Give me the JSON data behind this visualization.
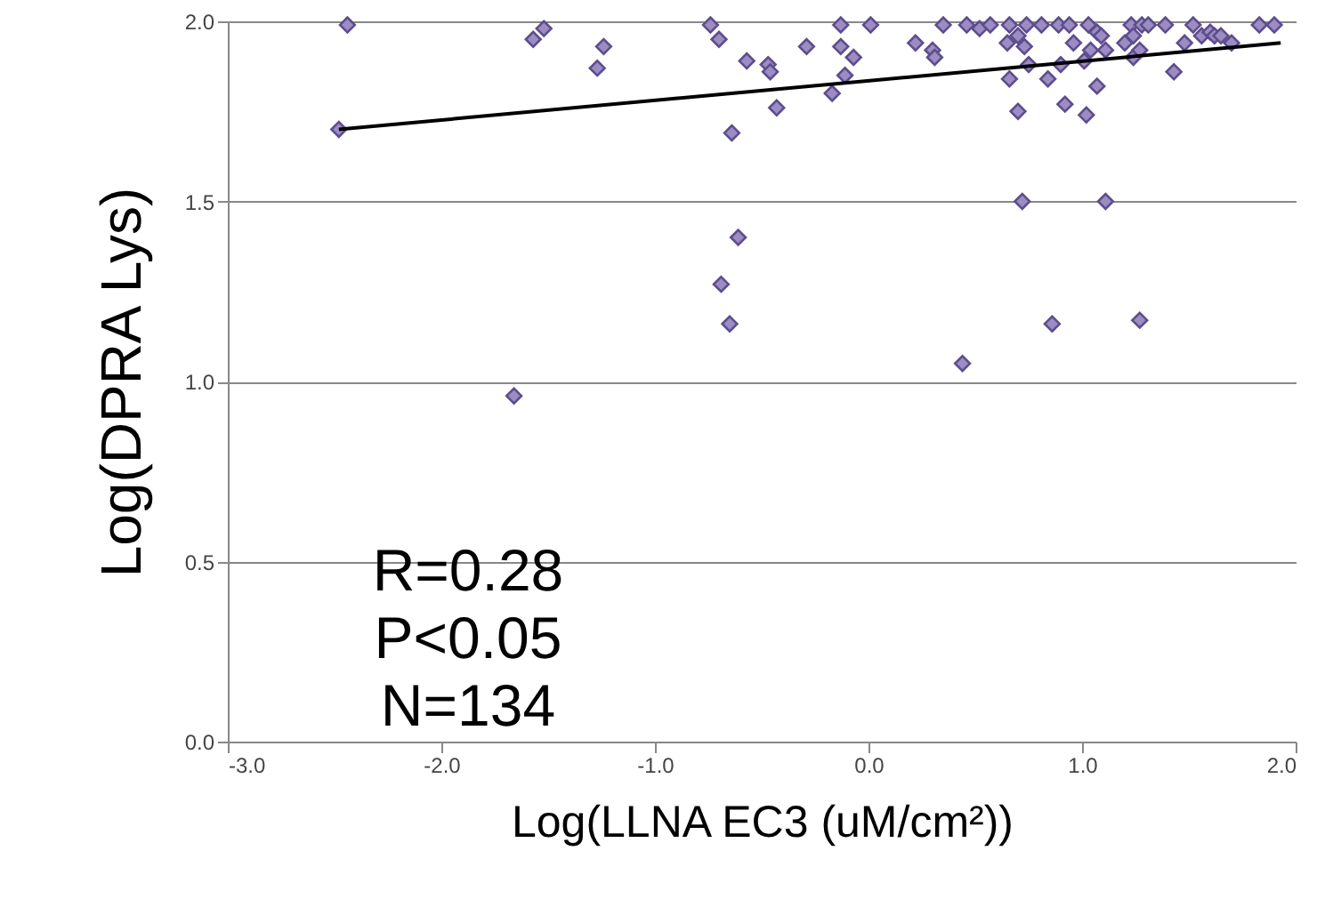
{
  "chart_data": {
    "type": "scatter",
    "xlabel": "Log(LLNA EC3   (uM/cm²))",
    "ylabel": "Log(DPRA Lys)",
    "annotations": [
      "R=0.28",
      "P<0.05",
      "N=134"
    ],
    "xlim": [
      -3,
      2
    ],
    "xticks": [
      {
        "value": -3,
        "label": "-3.0"
      },
      {
        "value": -2,
        "label": "-2.0"
      },
      {
        "value": -1,
        "label": "-1.0"
      },
      {
        "value": 0,
        "label": "0.0"
      },
      {
        "value": 1,
        "label": "1.0"
      },
      {
        "value": 2,
        "label": "2.0"
      }
    ],
    "ylim": [
      0,
      2
    ],
    "yticks": [
      {
        "value": 0,
        "label": "0.0"
      },
      {
        "value": 0.5,
        "label": "0.5"
      },
      {
        "value": 1,
        "label": "1.0"
      },
      {
        "value": 1.5,
        "label": "1.5"
      },
      {
        "value": 2,
        "label": "2.0"
      }
    ],
    "grid": "y",
    "series": [
      {
        "marker": "diamond",
        "color": "#9b8cc4",
        "x": [
          -2.44,
          -2.48,
          -1.57,
          -1.52,
          -1.27,
          -1.24,
          -1.66,
          -0.74,
          -0.7,
          -0.57,
          -0.64,
          -0.61,
          -0.69,
          -0.65,
          -0.47,
          -0.46,
          -0.43,
          -0.29,
          -0.17,
          -0.13,
          -0.13,
          -0.07,
          -0.11,
          0.01,
          0.22,
          0.3,
          0.31,
          0.44,
          0.35,
          0.46,
          0.52,
          0.57,
          0.66,
          0.65,
          0.7,
          0.73,
          0.74,
          0.75,
          0.66,
          0.7,
          0.72,
          0.81,
          0.89,
          0.94,
          0.96,
          0.84,
          0.9,
          0.92,
          0.86,
          1.02,
          1.01,
          1.03,
          1.07,
          1.07,
          1.09,
          1.04,
          1.11,
          1.11,
          1.2,
          1.23,
          1.24,
          1.27,
          1.28,
          1.31,
          1.27,
          1.24,
          1.43,
          1.39,
          1.48,
          1.52,
          1.56,
          1.6,
          1.62,
          1.65,
          1.7,
          1.83,
          1.9
        ],
        "values": [
          1.99,
          1.7,
          1.95,
          1.98,
          1.87,
          1.93,
          0.96,
          1.99,
          1.95,
          1.89,
          1.69,
          1.4,
          1.27,
          1.16,
          1.88,
          1.86,
          1.76,
          1.93,
          1.8,
          1.99,
          1.93,
          1.9,
          1.85,
          1.99,
          1.94,
          1.92,
          1.9,
          1.05,
          1.99,
          1.99,
          1.98,
          1.99,
          1.99,
          1.94,
          1.96,
          1.93,
          1.99,
          1.88,
          1.84,
          1.75,
          1.5,
          1.99,
          1.99,
          1.99,
          1.94,
          1.84,
          1.88,
          1.77,
          1.16,
          1.74,
          1.89,
          1.99,
          1.82,
          1.97,
          1.96,
          1.92,
          1.92,
          1.5,
          1.94,
          1.99,
          1.9,
          1.92,
          1.99,
          1.99,
          1.17,
          1.96,
          1.86,
          1.99,
          1.94,
          1.99,
          1.96,
          1.97,
          1.96,
          1.96,
          1.94,
          1.99,
          1.99
        ]
      },
      {
        "type": "line",
        "color": "#000000",
        "x": [
          -2.48,
          1.93
        ],
        "values": [
          1.7,
          1.94
        ]
      }
    ]
  }
}
